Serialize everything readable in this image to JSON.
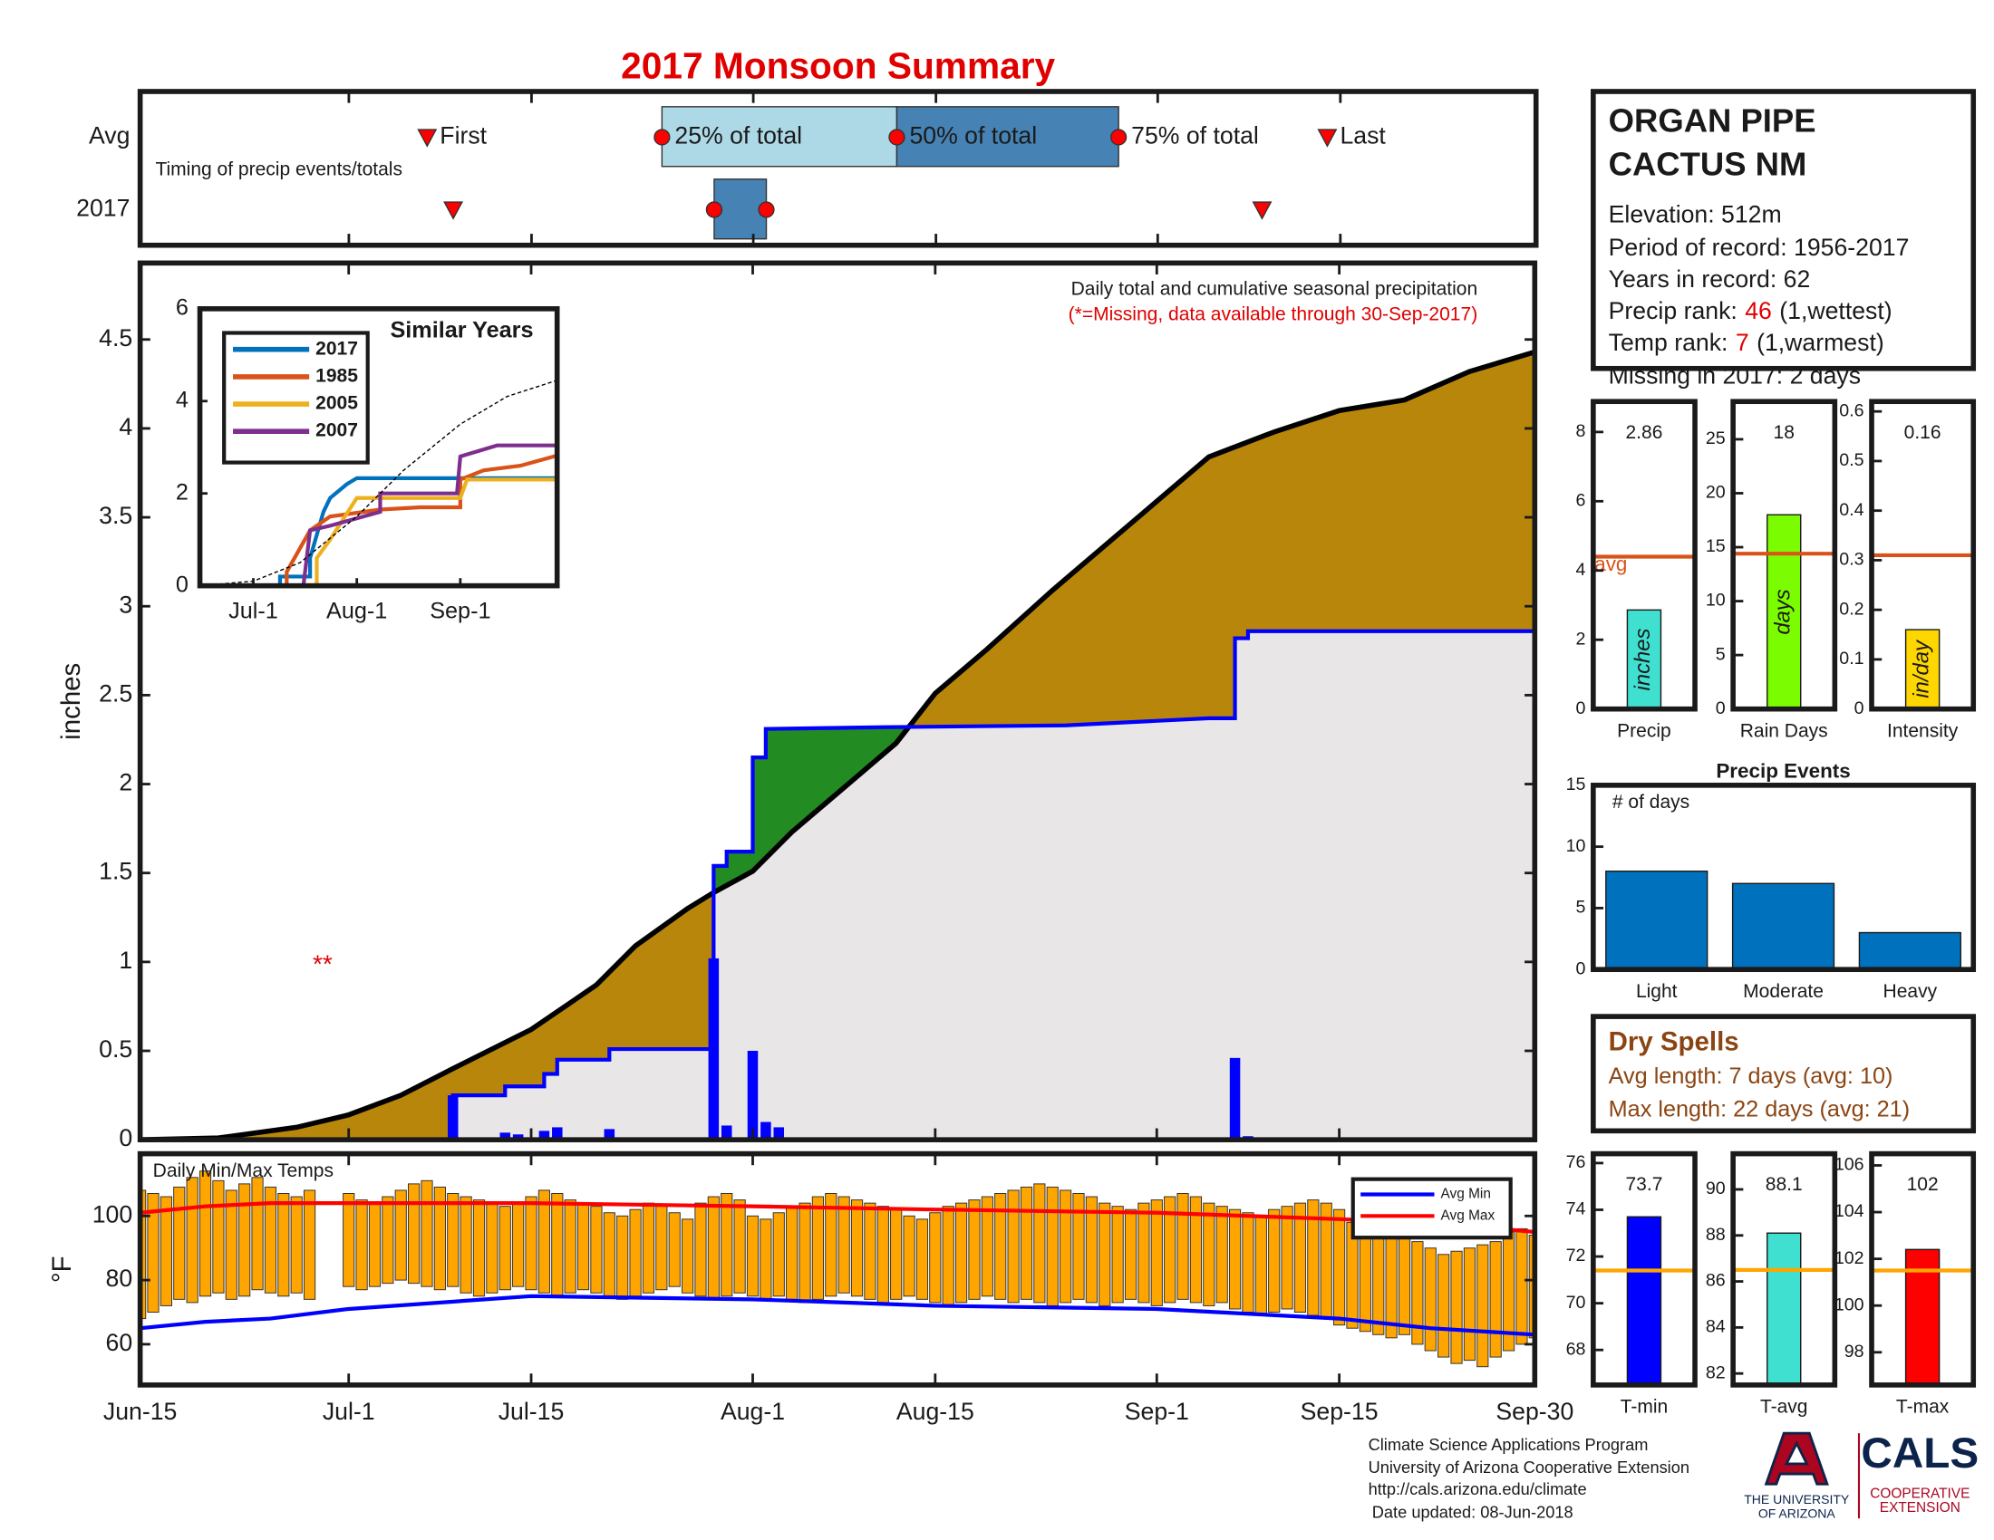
{
  "chart_data": [
    {
      "type": "timeline",
      "title": "2017 Monsoon Summary",
      "subtitle": "Timing of precip events/totals",
      "events": [
        "First",
        "25% of total",
        "50% of total",
        "75% of total",
        "Last"
      ],
      "series": [
        {
          "name": "Avg",
          "values": [
            "Jul-7",
            "Jul-25",
            "Aug-12",
            "Aug-29",
            "Sep-14"
          ]
        },
        {
          "name": "2017",
          "values": [
            "Jul-9",
            "Jul-29",
            "Jul-29",
            "Aug-2",
            "Sep-9"
          ]
        }
      ],
      "xlim": [
        "Jun-15",
        "Sep-30"
      ],
      "colors": [
        "#add8e6",
        "#4682b4"
      ],
      "marker_color": "#ff0000",
      "title_color": "#e00000"
    },
    {
      "type": "area",
      "title": "Daily total and cumulative seasonal precipitation",
      "subtitle": "(*=Missing, data available through 30-Sep-2017)",
      "ylabel": "inches",
      "annotation": {
        "text": "**",
        "x": "Jun-29",
        "y": 1
      },
      "xlim": [
        "Jun-15",
        "Sep-30"
      ],
      "ylim": [
        0,
        4.93
      ],
      "yticks": [
        0,
        0.5,
        1,
        1.5,
        2,
        2.5,
        3,
        3.5,
        4,
        4.5
      ],
      "series": [
        {
          "color": "#b8860b",
          "line_color": "#000000",
          "x": [
            "Jun-15",
            "Jun-21",
            "Jun-27",
            "Jul-1",
            "Jul-5",
            "Jul-9",
            "Jul-15",
            "Jul-20",
            "Jul-23",
            "Jul-27",
            "Jul-29",
            "Aug-1",
            "Aug-4",
            "Aug-8",
            "Aug-12",
            "Aug-15",
            "Aug-19",
            "Aug-24",
            "Aug-28",
            "Sep-1",
            "Sep-5",
            "Sep-10",
            "Sep-15",
            "Sep-20",
            "Sep-25",
            "Sep-30"
          ],
          "values": [
            0,
            0.01,
            0.07,
            0.14,
            0.25,
            0.4,
            0.62,
            0.87,
            1.09,
            1.3,
            1.39,
            1.51,
            1.73,
            1.98,
            2.23,
            2.51,
            2.76,
            3.09,
            3.34,
            3.59,
            3.84,
            3.98,
            4.1,
            4.16,
            4.32,
            4.43
          ]
        },
        {
          "color": "#0000ff",
          "fill": "#e8e6e6",
          "above_fill": "#228b22",
          "x": [
            "Jun-15",
            "Jul-9",
            "Jul-9",
            "Jul-13",
            "Jul-13",
            "Jul-16",
            "Jul-16",
            "Jul-17",
            "Jul-17",
            "Jul-21",
            "Jul-21",
            "Jul-29",
            "Jul-29",
            "Jul-30",
            "Jul-30",
            "Aug-1",
            "Aug-1",
            "Aug-2",
            "Aug-2",
            "Aug-11",
            "Aug-25",
            "Sep-5",
            "Sep-7",
            "Sep-7",
            "Sep-8",
            "Sep-8",
            "Sep-30"
          ],
          "values": [
            0,
            0,
            0.25,
            0.25,
            0.3,
            0.3,
            0.37,
            0.37,
            0.45,
            0.45,
            0.51,
            0.51,
            1.54,
            1.54,
            1.62,
            1.62,
            2.15,
            2.15,
            2.31,
            2.32,
            2.33,
            2.37,
            2.37,
            2.82,
            2.82,
            2.86,
            2.86
          ]
        },
        {
          "type": "bar",
          "color": "#0000ff",
          "x": [
            "Jul-9",
            "Jul-13",
            "Jul-14",
            "Jul-16",
            "Jul-17",
            "Jul-21",
            "Jul-29",
            "Jul-30",
            "Aug-1",
            "Aug-2",
            "Aug-3",
            "Sep-5",
            "Sep-7",
            "Sep-8"
          ],
          "values": [
            0.25,
            0.04,
            0.03,
            0.05,
            0.07,
            0.06,
            1.02,
            0.08,
            0.5,
            0.1,
            0.07,
            0.01,
            0.46,
            0.02
          ]
        }
      ]
    },
    {
      "type": "line",
      "title": "Similar Years",
      "xlim": [
        "Jun-15",
        "Sep-30"
      ],
      "xticks": [
        "Jul-1",
        "Aug-1",
        "Sep-1"
      ],
      "ylim": [
        0,
        6
      ],
      "yticks": [
        0,
        2,
        4,
        6
      ],
      "series": [
        {
          "name": "2017",
          "color": "#0072bd",
          "x": [
            "Jun-15",
            "Jul-9",
            "Jul-9",
            "Jul-18",
            "Jul-18",
            "Jul-22",
            "Jul-24",
            "Jul-29",
            "Aug-1",
            "Sep-30"
          ],
          "values": [
            0,
            0,
            0.2,
            0.2,
            0.6,
            1.6,
            1.9,
            2.2,
            2.33,
            2.33
          ]
        },
        {
          "name": "1985",
          "color": "#d95319",
          "x": [
            "Jun-15",
            "Jul-11",
            "Jul-11",
            "Jul-18",
            "Jul-24",
            "Aug-8",
            "Aug-20",
            "Sep-1",
            "Sep-1",
            "Sep-8",
            "Sep-19",
            "Sep-30"
          ],
          "values": [
            0,
            0,
            0.3,
            1.2,
            1.5,
            1.65,
            1.7,
            1.7,
            2.3,
            2.5,
            2.6,
            2.82
          ]
        },
        {
          "name": "2005",
          "color": "#edb120",
          "x": [
            "Jun-15",
            "Jul-20",
            "Jul-20",
            "Jul-24",
            "Aug-1",
            "Aug-8",
            "Sep-1",
            "Sep-3",
            "Sep-30"
          ],
          "values": [
            0,
            0,
            0.6,
            1.0,
            1.9,
            1.9,
            1.9,
            2.3,
            2.3
          ]
        },
        {
          "name": "2007",
          "color": "#7e2f8e",
          "x": [
            "Jun-15",
            "Jul-16",
            "Jul-18",
            "Jul-24",
            "Aug-8",
            "Aug-8",
            "Aug-31",
            "Sep-1",
            "Sep-12",
            "Sep-30"
          ],
          "values": [
            0,
            0,
            1.2,
            1.3,
            1.6,
            2.0,
            2.0,
            2.8,
            3.04,
            3.04
          ]
        },
        {
          "color": "#000000",
          "dash": true,
          "x": [
            "Jun-15",
            "Jul-1",
            "Jul-15",
            "Aug-1",
            "Aug-15",
            "Sep-1",
            "Sep-15",
            "Sep-30"
          ],
          "values": [
            0,
            0.1,
            0.5,
            1.5,
            2.5,
            3.5,
            4.1,
            4.45
          ]
        }
      ]
    },
    {
      "type": "range",
      "title": "Daily Min/Max Temps",
      "ylabel": "°F",
      "xlim": [
        "Jun-15",
        "Sep-30"
      ],
      "xticks": [
        "Jun-15",
        "Jul-1",
        "Jul-15",
        "Aug-1",
        "Aug-15",
        "Sep-1",
        "Sep-15",
        "Sep-30"
      ],
      "ylim": [
        47.3,
        119.4
      ],
      "yticks": [
        60,
        80,
        100
      ],
      "color": "#ffa500",
      "legend": "upper right",
      "x": [
        "Jun-15",
        "Jun-16",
        "Jun-17",
        "Jun-18",
        "Jun-19",
        "Jun-20",
        "Jun-21",
        "Jun-22",
        "Jun-23",
        "Jun-24",
        "Jun-25",
        "Jun-26",
        "Jun-27",
        "Jun-28",
        "Jun-29",
        "Jun-30",
        "Jul-1",
        "Jul-2",
        "Jul-3",
        "Jul-4",
        "Jul-5",
        "Jul-6",
        "Jul-7",
        "Jul-8",
        "Jul-9",
        "Jul-10",
        "Jul-11",
        "Jul-12",
        "Jul-13",
        "Jul-14",
        "Jul-15",
        "Jul-16",
        "Jul-17",
        "Jul-18",
        "Jul-19",
        "Jul-20",
        "Jul-21",
        "Jul-22",
        "Jul-23",
        "Jul-24",
        "Jul-25",
        "Jul-26",
        "Jul-27",
        "Jul-28",
        "Jul-29",
        "Jul-30",
        "Jul-31",
        "Aug-1",
        "Aug-2",
        "Aug-3",
        "Aug-4",
        "Aug-5",
        "Aug-6",
        "Aug-7",
        "Aug-8",
        "Aug-9",
        "Aug-10",
        "Aug-11",
        "Aug-12",
        "Aug-13",
        "Aug-14",
        "Aug-15",
        "Aug-16",
        "Aug-17",
        "Aug-18",
        "Aug-19",
        "Aug-20",
        "Aug-21",
        "Aug-22",
        "Aug-23",
        "Aug-24",
        "Aug-25",
        "Aug-26",
        "Aug-27",
        "Aug-28",
        "Aug-29",
        "Aug-30",
        "Aug-31",
        "Sep-1",
        "Sep-2",
        "Sep-3",
        "Sep-4",
        "Sep-5",
        "Sep-6",
        "Sep-7",
        "Sep-8",
        "Sep-9",
        "Sep-10",
        "Sep-11",
        "Sep-12",
        "Sep-13",
        "Sep-14",
        "Sep-15",
        "Sep-16",
        "Sep-17",
        "Sep-18",
        "Sep-19",
        "Sep-20",
        "Sep-21",
        "Sep-22",
        "Sep-23",
        "Sep-24",
        "Sep-25",
        "Sep-26",
        "Sep-27",
        "Sep-28",
        "Sep-29",
        "Sep-30"
      ],
      "min": [
        68,
        70,
        72,
        74,
        73,
        75,
        76,
        74,
        75,
        77,
        76,
        75,
        76,
        74,
        null,
        null,
        78,
        77,
        78,
        79,
        80,
        79,
        78,
        77,
        78,
        76,
        75,
        76,
        77,
        78,
        77,
        76,
        75,
        76,
        77,
        76,
        75,
        74,
        75,
        76,
        77,
        78,
        76,
        75,
        74,
        75,
        76,
        75,
        74,
        75,
        74,
        73,
        74,
        75,
        76,
        75,
        74,
        73,
        74,
        75,
        74,
        73,
        72,
        73,
        74,
        75,
        74,
        73,
        74,
        73,
        72,
        73,
        74,
        73,
        72,
        73,
        74,
        73,
        72,
        73,
        74,
        73,
        72,
        73,
        71,
        70,
        69,
        70,
        71,
        70,
        69,
        68,
        66,
        65,
        64,
        63,
        62,
        63,
        60,
        58,
        56,
        54,
        55,
        53,
        56,
        58,
        60,
        62
      ],
      "max": [
        108,
        107,
        106,
        109,
        112,
        114,
        111,
        108,
        110,
        112,
        109,
        107,
        106,
        108,
        null,
        null,
        107,
        105,
        104,
        106,
        108,
        110,
        111,
        109,
        107,
        106,
        105,
        104,
        103,
        104,
        106,
        108,
        107,
        105,
        104,
        103,
        101,
        100,
        102,
        104,
        103,
        101,
        99,
        104,
        106,
        107,
        105,
        100,
        99,
        101,
        103,
        104,
        106,
        107,
        106,
        105,
        104,
        103,
        102,
        100,
        99,
        101,
        103,
        104,
        105,
        106,
        107,
        108,
        109,
        110,
        109,
        108,
        107,
        106,
        104,
        103,
        102,
        104,
        105,
        106,
        107,
        106,
        104,
        103,
        102,
        101,
        100,
        102,
        103,
        104,
        105,
        104,
        102,
        98,
        96,
        95,
        94,
        93,
        92,
        90,
        88,
        89,
        90,
        91,
        92,
        95,
        96,
        94
      ],
      "series": [
        {
          "name": "Avg Min",
          "color": "#0000ff",
          "x": [
            "Jun-15",
            "Jun-20",
            "Jun-25",
            "Jul-1",
            "Jul-15",
            "Aug-1",
            "Aug-15",
            "Sep-1",
            "Sep-15",
            "Sep-22",
            "Sep-30"
          ],
          "values": [
            65,
            67,
            68,
            71,
            75,
            74,
            72,
            71,
            68,
            65,
            63
          ]
        },
        {
          "name": "Avg Max",
          "color": "#ff0000",
          "x": [
            "Jun-15",
            "Jun-20",
            "Jun-25",
            "Jul-1",
            "Jul-15",
            "Aug-1",
            "Aug-15",
            "Sep-1",
            "Sep-15",
            "Sep-22",
            "Sep-30"
          ],
          "values": [
            101,
            103,
            104,
            104,
            104,
            103,
            102,
            101,
            99,
            98,
            95
          ]
        }
      ]
    },
    {
      "type": "bar",
      "categories": [
        "Precip"
      ],
      "values": [
        2.86
      ],
      "unit": "inches",
      "avg": 4.4,
      "avg_label": "avg",
      "ylim": [
        0,
        8.88
      ],
      "yticks": [
        0,
        2,
        4,
        6,
        8
      ],
      "color": "#40e0d0",
      "avg_color": "#d95319",
      "data_labels": true
    },
    {
      "type": "bar",
      "categories": [
        "Rain Days"
      ],
      "values": [
        18
      ],
      "unit": "days",
      "avg": 14.4,
      "ylim": [
        0,
        28.5
      ],
      "yticks": [
        0,
        5,
        10,
        15,
        20,
        25
      ],
      "color": "#7cfc00",
      "avg_color": "#d95319",
      "data_labels": true
    },
    {
      "type": "bar",
      "categories": [
        "Intensity"
      ],
      "values": [
        0.16
      ],
      "unit": "in/day",
      "avg": 0.31,
      "ylim": [
        0,
        0.62
      ],
      "yticks": [
        0,
        0.1,
        0.2,
        0.3,
        0.4,
        0.5,
        0.6
      ],
      "color": "#ffd700",
      "avg_color": "#d95319",
      "data_labels": true
    },
    {
      "type": "bar",
      "title": "Precip Events",
      "subtitle": "# of days",
      "categories": [
        "Light",
        "Moderate",
        "Heavy"
      ],
      "values": [
        8,
        7,
        3
      ],
      "ylim": [
        0,
        15
      ],
      "yticks": [
        0,
        5,
        10,
        15
      ],
      "color": "#0072bd"
    },
    {
      "type": "bar",
      "categories": [
        "T-min"
      ],
      "values": [
        73.7
      ],
      "avg": 71.4,
      "ylim": [
        66.5,
        76.4
      ],
      "yticks": [
        68,
        70,
        72,
        74,
        76
      ],
      "color": "#0000ff",
      "avg_color": "#ffa500",
      "data_labels": true
    },
    {
      "type": "bar",
      "categories": [
        "T-avg"
      ],
      "values": [
        88.1
      ],
      "avg": 86.5,
      "ylim": [
        81.5,
        91.55
      ],
      "yticks": [
        82,
        84,
        86,
        88,
        90
      ],
      "color": "#40e0d0",
      "avg_color": "#ffa500",
      "data_labels": true
    },
    {
      "type": "bar",
      "categories": [
        "T-max"
      ],
      "values": [
        102.4
      ],
      "value_labels": [
        "102"
      ],
      "avg": 101.5,
      "ylim": [
        96.6,
        106.5
      ],
      "yticks": [
        98,
        100,
        102,
        104,
        106
      ],
      "color": "#ff0000",
      "avg_color": "#ffa500",
      "data_labels": true
    }
  ],
  "info": {
    "title": [
      "ORGAN PIPE",
      "CACTUS NM"
    ],
    "elevation": "Elevation: 512m",
    "period": "Period of record: 1956-2017",
    "years": "Years in record: 62",
    "precip_rank": {
      "label": "Precip rank:",
      "value": "46",
      "note": "(1,wettest)"
    },
    "temp_rank": {
      "label": "Temp rank:",
      "value": "7",
      "note": "(1,warmest)"
    },
    "missing": "Missing in 2017: 2 days"
  },
  "dry_spells": {
    "title": "Dry Spells",
    "lines": [
      "Avg length: 7 days (avg: 10)",
      "Max length: 22 days (avg: 21)"
    ]
  },
  "footer": {
    "lines": [
      "Climate Science Applications Program",
      "University of Arizona Cooperative Extension",
      "http://cals.arizona.edu/climate",
      "Date updated: 08-Jun-2018"
    ],
    "logos": [
      "THE UNIVERSITY",
      "OF ARIZONA",
      "CALS",
      "COOPERATIVE",
      "EXTENSION"
    ]
  }
}
